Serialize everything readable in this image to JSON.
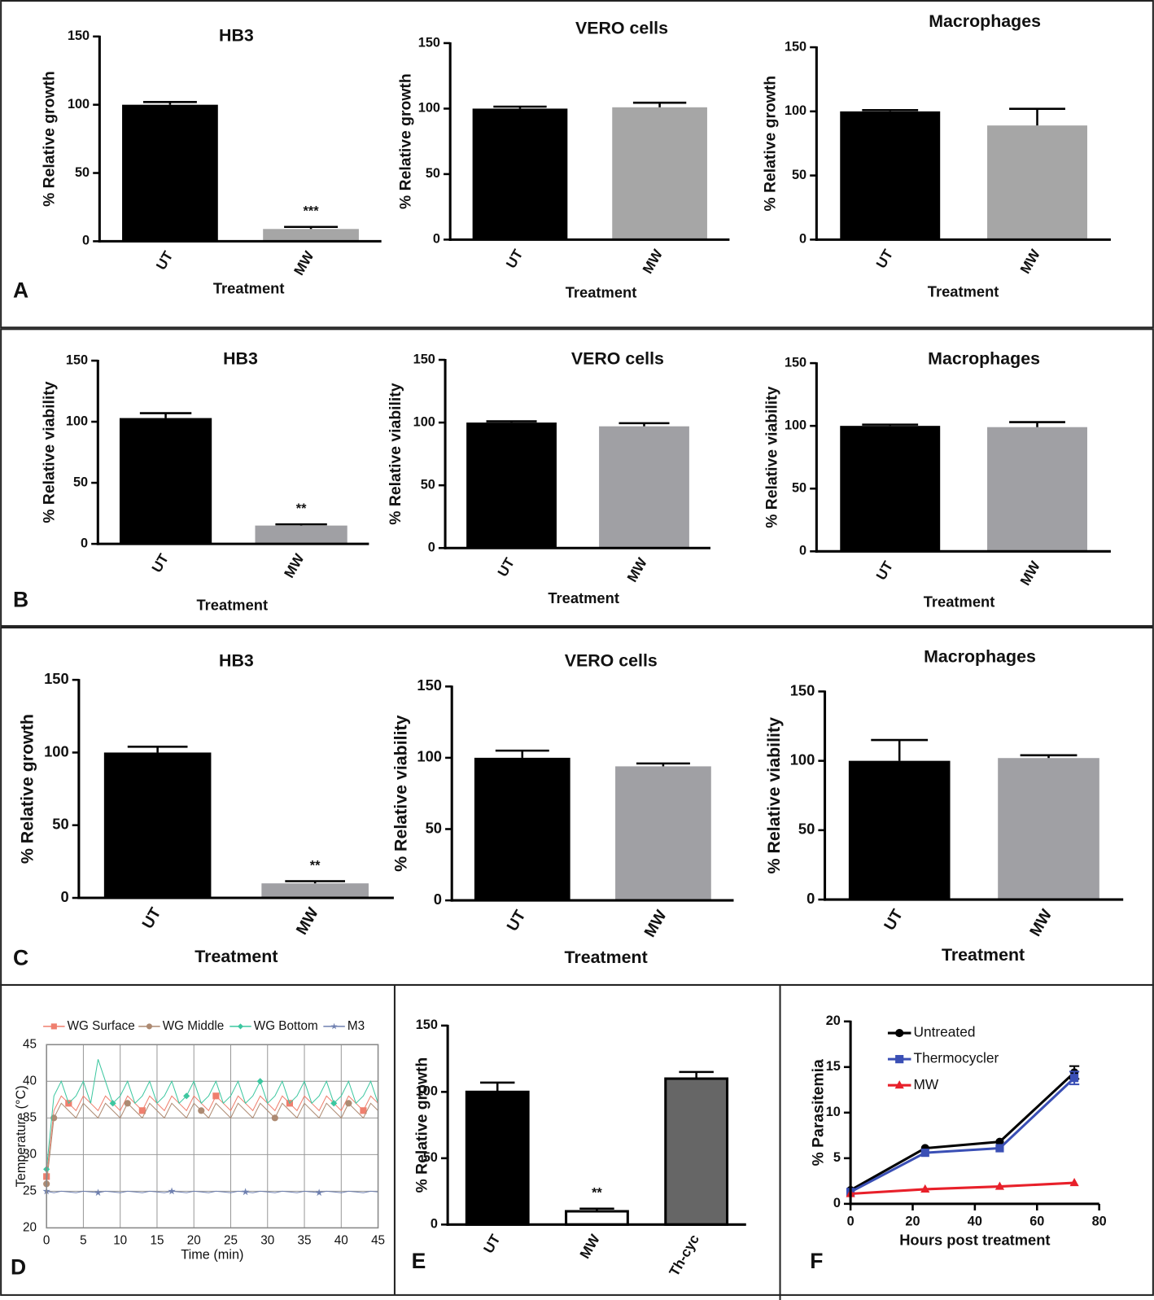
{
  "panel_labels": [
    "A",
    "B",
    "C",
    "D",
    "E",
    "F"
  ],
  "chart_data": [
    {
      "type": "bar",
      "title": "HB3",
      "ylabel": "% Relative growth",
      "xlabel": "Treatment",
      "categories": [
        "UT",
        "MW"
      ],
      "values": [
        100,
        9
      ],
      "errors": [
        2,
        1.5
      ],
      "significance": [
        null,
        "***"
      ],
      "colors": [
        "#000000",
        "#a6a6a6"
      ],
      "ylim": [
        0,
        150
      ],
      "yticks": [
        0,
        50,
        100,
        150
      ]
    },
    {
      "type": "bar",
      "title": "VERO cells",
      "ylabel": "% Relative growth",
      "xlabel": "Treatment",
      "categories": [
        "UT",
        "MW"
      ],
      "values": [
        100,
        101
      ],
      "errors": [
        1.5,
        3.5
      ],
      "colors": [
        "#000000",
        "#a6a6a6"
      ],
      "ylim": [
        0,
        150
      ],
      "yticks": [
        0,
        50,
        100,
        150
      ]
    },
    {
      "type": "bar",
      "title": "Macrophages",
      "ylabel": "% Relative growth",
      "xlabel": "Treatment",
      "categories": [
        "UT",
        "MW"
      ],
      "values": [
        100,
        89
      ],
      "errors": [
        1,
        13
      ],
      "colors": [
        "#000000",
        "#a6a6a6"
      ],
      "ylim": [
        0,
        150
      ],
      "yticks": [
        0,
        50,
        100,
        150
      ]
    },
    {
      "type": "bar",
      "title": "HB3",
      "ylabel": "% Relative viability",
      "xlabel": "Treatment",
      "categories": [
        "UT",
        "MW"
      ],
      "values": [
        103,
        15
      ],
      "errors": [
        4,
        1
      ],
      "significance": [
        null,
        "**"
      ],
      "colors": [
        "#000000",
        "#a0a0a4"
      ],
      "ylim": [
        0,
        150
      ],
      "yticks": [
        0,
        50,
        100,
        150
      ]
    },
    {
      "type": "bar",
      "title": "VERO cells",
      "ylabel": "% Relative viability",
      "xlabel": "Treatment",
      "categories": [
        "UT",
        "MW"
      ],
      "values": [
        100,
        97
      ],
      "errors": [
        1,
        2.5
      ],
      "colors": [
        "#000000",
        "#a0a0a4"
      ],
      "ylim": [
        0,
        150
      ],
      "yticks": [
        0,
        50,
        100,
        150
      ]
    },
    {
      "type": "bar",
      "title": "Macrophages",
      "ylabel": "% Relative viability",
      "xlabel": "Treatment",
      "categories": [
        "UT",
        "MW"
      ],
      "values": [
        100,
        99
      ],
      "errors": [
        1,
        4
      ],
      "colors": [
        "#000000",
        "#a0a0a4"
      ],
      "ylim": [
        0,
        150
      ],
      "yticks": [
        0,
        50,
        100,
        150
      ]
    },
    {
      "type": "bar",
      "title": "HB3",
      "ylabel": "% Relative growth",
      "xlabel": "Treatment",
      "categories": [
        "UT",
        "MW"
      ],
      "values": [
        100,
        10
      ],
      "errors": [
        4,
        1.5
      ],
      "significance": [
        null,
        "**"
      ],
      "colors": [
        "#000000",
        "#a0a0a4"
      ],
      "ylim": [
        0,
        150
      ],
      "yticks": [
        0,
        50,
        100,
        150
      ]
    },
    {
      "type": "bar",
      "title": "VERO cells",
      "ylabel": "% Relative viability",
      "xlabel": "Treatment",
      "categories": [
        "UT",
        "MW"
      ],
      "values": [
        100,
        94
      ],
      "errors": [
        5,
        2
      ],
      "colors": [
        "#000000",
        "#a0a0a4"
      ],
      "ylim": [
        0,
        150
      ],
      "yticks": [
        0,
        50,
        100,
        150
      ]
    },
    {
      "type": "bar",
      "title": "Macrophages",
      "ylabel": "% Relative viability",
      "xlabel": "Treatment",
      "categories": [
        "UT",
        "MW"
      ],
      "values": [
        100,
        102
      ],
      "errors": [
        15,
        2
      ],
      "colors": [
        "#000000",
        "#a0a0a4"
      ],
      "ylim": [
        0,
        150
      ],
      "yticks": [
        0,
        50,
        100,
        150
      ]
    },
    {
      "type": "line",
      "xlabel": "Time (min)",
      "ylabel": "Temperature (°C)",
      "grid": true,
      "frame": true,
      "legend": "top",
      "x": [
        0,
        1,
        2,
        3,
        4,
        5,
        6,
        7,
        8,
        9,
        10,
        11,
        12,
        13,
        14,
        15,
        16,
        17,
        18,
        19,
        20,
        21,
        22,
        23,
        24,
        25,
        26,
        27,
        28,
        29,
        30,
        31,
        32,
        33,
        34,
        35,
        36,
        37,
        38,
        39,
        40,
        41,
        42,
        43,
        44,
        45
      ],
      "series": [
        {
          "name": "WG Surface",
          "color": "#ef7f6e",
          "marker": "square",
          "values": [
            27,
            36,
            38,
            37,
            36,
            38,
            37,
            36,
            38,
            37,
            36,
            38,
            37,
            36,
            38,
            37,
            36,
            38,
            37,
            36,
            38,
            37,
            36,
            38,
            37,
            36,
            38,
            37,
            36,
            38,
            37,
            36,
            38,
            37,
            36,
            38,
            37,
            36,
            38,
            37,
            36,
            38,
            37,
            36,
            38,
            37
          ]
        },
        {
          "name": "WG Middle",
          "color": "#ad8a72",
          "marker": "circle",
          "values": [
            26,
            35,
            37,
            36,
            35,
            37,
            36,
            35,
            37,
            36,
            35,
            37,
            36,
            35,
            37,
            36,
            35,
            37,
            36,
            35,
            37,
            36,
            35,
            37,
            36,
            35,
            37,
            36,
            35,
            37,
            36,
            35,
            37,
            36,
            35,
            37,
            36,
            35,
            37,
            36,
            35,
            37,
            36,
            35,
            37,
            36
          ]
        },
        {
          "name": "WG Bottom",
          "color": "#3dc7a0",
          "marker": "diamond",
          "values": [
            28,
            38,
            40,
            37,
            38,
            40,
            37,
            43,
            40,
            37,
            38,
            40,
            37,
            38,
            40,
            37,
            38,
            40,
            37,
            38,
            40,
            37,
            38,
            40,
            37,
            38,
            40,
            37,
            38,
            40,
            37,
            38,
            40,
            37,
            38,
            40,
            37,
            38,
            40,
            37,
            38,
            40,
            37,
            38,
            40,
            37
          ]
        },
        {
          "name": "M3",
          "color": "#6f80b0",
          "marker": "star",
          "values": [
            25,
            24.8,
            25,
            24.9,
            24.8,
            25,
            24.9,
            24.8,
            25,
            24.9,
            24.8,
            25,
            24.9,
            24.8,
            25,
            24.9,
            24.8,
            25,
            24.9,
            24.8,
            25,
            24.9,
            24.8,
            25,
            24.9,
            24.8,
            25,
            24.9,
            24.8,
            25,
            24.9,
            24.8,
            25,
            24.9,
            24.8,
            25,
            24.9,
            24.8,
            25,
            24.9,
            24.8,
            25,
            24.9,
            24.8,
            25,
            24.9
          ]
        }
      ],
      "xlim": [
        0,
        45
      ],
      "xticks": [
        0,
        5,
        10,
        15,
        20,
        25,
        30,
        35,
        40,
        45
      ],
      "ylim": [
        20,
        45
      ],
      "yticks": [
        20,
        25,
        30,
        35,
        40,
        45
      ]
    },
    {
      "type": "bar",
      "ylabel": "% Relative growth",
      "categories": [
        "UT",
        "MW",
        "Th-cyc"
      ],
      "values": [
        100,
        10,
        110
      ],
      "errors": [
        7,
        2,
        5
      ],
      "significance": [
        null,
        "**",
        null
      ],
      "colors": [
        "#000000",
        "#ffffff",
        "#666666"
      ],
      "ylim": [
        0,
        150
      ],
      "yticks": [
        0,
        50,
        100,
        150
      ]
    },
    {
      "type": "line",
      "xlabel": "Hours post treatment",
      "ylabel": "% Parasitemia",
      "grid": false,
      "legend": "upper left",
      "x": [
        0,
        24,
        48,
        72
      ],
      "series": [
        {
          "name": "Untreated",
          "color": "#000000",
          "marker": "circle",
          "values": [
            1.5,
            6.1,
            6.8,
            14.4
          ],
          "errors": [
            null,
            null,
            null,
            0.7
          ]
        },
        {
          "name": "Thermocycler",
          "color": "#3a4fb5",
          "marker": "square",
          "values": [
            1.3,
            5.6,
            6.1,
            13.8
          ],
          "errors": [
            null,
            null,
            null,
            0.7
          ]
        },
        {
          "name": "MW",
          "color": "#e8202a",
          "marker": "triangle",
          "values": [
            1.1,
            1.6,
            1.9,
            2.3
          ]
        }
      ],
      "xlim": [
        0,
        80
      ],
      "xticks": [
        0,
        20,
        40,
        60,
        80
      ],
      "ylim": [
        0,
        20
      ],
      "yticks": [
        0,
        5,
        10,
        15,
        20
      ]
    }
  ]
}
